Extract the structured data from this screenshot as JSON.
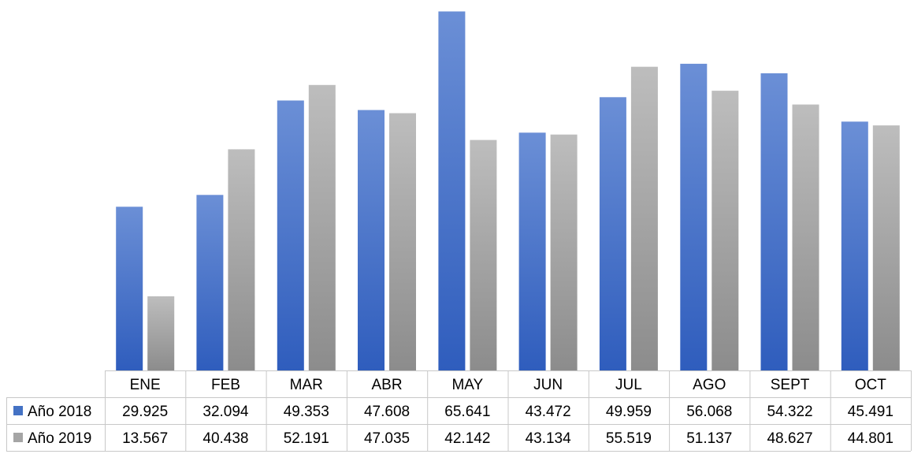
{
  "chart_data": {
    "type": "bar",
    "categories": [
      "ENE",
      "FEB",
      "MAR",
      "ABR",
      "MAY",
      "JUN",
      "JUL",
      "AGO",
      "SEPT",
      "OCT"
    ],
    "series": [
      {
        "name": "Año 2018",
        "color": "#4472c4",
        "values": [
          29.925,
          32.094,
          49.353,
          47.608,
          65.641,
          43.472,
          49.959,
          56.068,
          54.322,
          45.491
        ],
        "labels": [
          "29.925",
          "32.094",
          "49.353",
          "47.608",
          "65.641",
          "43.472",
          "49.959",
          "56.068",
          "54.322",
          "45.491"
        ]
      },
      {
        "name": "Año 2019",
        "color": "#a5a5a5",
        "values": [
          13.567,
          40.438,
          52.191,
          47.035,
          42.142,
          43.134,
          55.519,
          51.137,
          48.627,
          44.801
        ],
        "labels": [
          "13.567",
          "40.438",
          "52.191",
          "47.035",
          "42.142",
          "43.134",
          "55.519",
          "51.137",
          "48.627",
          "44.801"
        ]
      }
    ],
    "title": "",
    "xlabel": "",
    "ylabel": "",
    "ylim": [
      0,
      66
    ],
    "grid": false,
    "legend": "data-table-left"
  }
}
